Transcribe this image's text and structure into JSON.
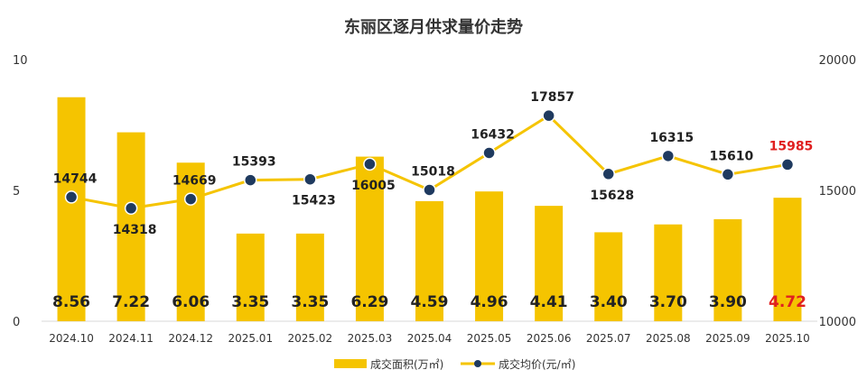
{
  "chart_data": {
    "type": "bar",
    "title": "东丽区逐月供求量价走势",
    "categories": [
      "2024.10",
      "2024.11",
      "2024.12",
      "2025.01",
      "2025.02",
      "2025.03",
      "2025.04",
      "2025.05",
      "2025.06",
      "2025.07",
      "2025.08",
      "2025.09",
      "2025.10"
    ],
    "series": [
      {
        "name": "成交面积(万㎡)",
        "kind": "bar",
        "axis": "left",
        "color": "#F5C400",
        "values": [
          8.56,
          7.22,
          6.06,
          3.35,
          3.35,
          6.29,
          4.59,
          4.96,
          4.41,
          3.4,
          3.7,
          3.9,
          4.72
        ],
        "labels": [
          "8.56",
          "7.22",
          "6.06",
          "3.35",
          "3.35",
          "6.29",
          "4.59",
          "4.96",
          "4.41",
          "3.40",
          "3.70",
          "3.90",
          "4.72"
        ]
      },
      {
        "name": "成交均价(元/㎡)",
        "kind": "line",
        "axis": "right",
        "color": "#F5C400",
        "marker_color": "#1F3A5F",
        "values": [
          14744,
          14318,
          14669,
          15393,
          15423,
          16005,
          15018,
          16432,
          17857,
          15628,
          16315,
          15610,
          15985
        ],
        "labels": [
          "14744",
          "14318",
          "14669",
          "15393",
          "15423",
          "16005",
          "15018",
          "16432",
          "17857",
          "15628",
          "16315",
          "15610",
          "15985"
        ]
      }
    ],
    "y_left": {
      "min": 0,
      "max": 10,
      "ticks": [
        "0",
        "5",
        "10"
      ]
    },
    "y_right": {
      "min": 10000,
      "max": 20000,
      "ticks": [
        "10000",
        "15000",
        "20000"
      ]
    },
    "highlight_color": "#E02020",
    "highlight_index": 12,
    "legend_position": "bottom",
    "grid": false
  }
}
